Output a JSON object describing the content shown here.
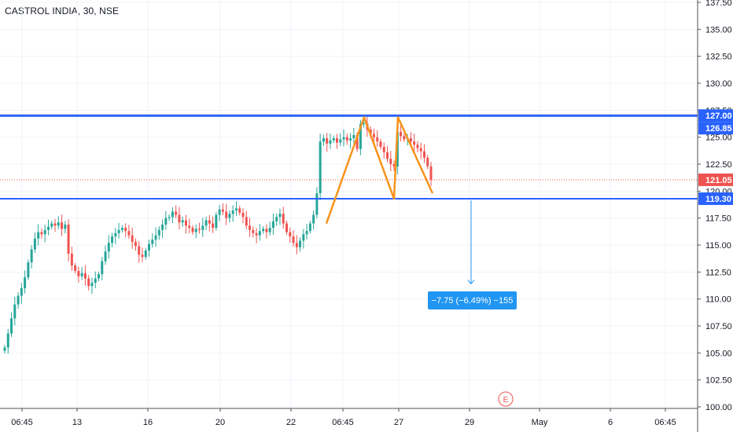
{
  "header": {
    "symbol_title": "CASTROL INDIA, 30, NSE"
  },
  "colors": {
    "up": "#26a69a",
    "down": "#ef5350",
    "level_line": "#2962ff",
    "level_label_bg": "#2962ff",
    "pattern": "#f7931a",
    "last_price": "#ef5350",
    "projection": "#2196f3",
    "grid": "#f0f3fa",
    "axis_text": "#131722"
  },
  "chart_data": {
    "type": "candlestick",
    "title": "CASTROL INDIA, 30, NSE",
    "ylim": [
      100,
      137.5
    ],
    "y_ticks": [
      "100.00",
      "102.50",
      "105.00",
      "107.50",
      "110.00",
      "112.50",
      "115.00",
      "117.50",
      "120.00",
      "122.50",
      "125.00",
      "127.50",
      "130.00",
      "132.50",
      "135.00",
      "137.50"
    ],
    "x_ticks": [
      "06:45",
      "13",
      "16",
      "20",
      "22",
      "06:45",
      "27",
      "29",
      "May",
      "6",
      "06:45"
    ],
    "levels": [
      {
        "label": "127.00",
        "value": 127.0
      },
      {
        "label": "119.30",
        "value": 119.3
      }
    ],
    "last_price": {
      "label": "121.05",
      "value": 121.05
    },
    "high_marker": {
      "label": "126.85",
      "value": 126.85
    },
    "double_top_pattern": [
      117.0,
      126.85,
      119.3,
      126.85,
      119.8
    ],
    "projection": {
      "from": 119.3,
      "to": 111.55,
      "label": "−7.75 (−6.49%) −155"
    },
    "event_marker": "E",
    "price_path": [
      105.5,
      106.8,
      108.2,
      109.5,
      110.3,
      111.0,
      112.0,
      113.4,
      114.6,
      115.6,
      116.2,
      116.0,
      116.4,
      116.7,
      117.0,
      116.8,
      117.1,
      116.5,
      116.9,
      114.2,
      113.1,
      112.6,
      112.1,
      112.4,
      111.9,
      111.2,
      111.5,
      111.9,
      112.3,
      113.5,
      114.4,
      115.2,
      115.8,
      116.1,
      116.4,
      116.6,
      116.3,
      115.9,
      115.3,
      114.9,
      114.1,
      113.9,
      114.5,
      115.1,
      115.5,
      115.9,
      116.4,
      116.9,
      117.5,
      117.6,
      118.1,
      117.8,
      117.1,
      117.3,
      116.8,
      116.6,
      116.2,
      116.5,
      116.4,
      116.8,
      117.3,
      117.0,
      116.6,
      117.8,
      118.3,
      118.1,
      117.5,
      117.9,
      118.2,
      118.4,
      118.0,
      117.6,
      116.8,
      116.4,
      116.1,
      115.9,
      116.3,
      116.5,
      116.2,
      116.6,
      117.2,
      117.6,
      117.9,
      117.0,
      116.2,
      115.8,
      115.2,
      114.8,
      115.4,
      116.0,
      116.3,
      117.0,
      117.8,
      119.8,
      124.6,
      124.9,
      124.4,
      124.7,
      124.9,
      124.5,
      124.8,
      125.0,
      124.7,
      124.9,
      125.2,
      123.9,
      126.2,
      126.3,
      125.7,
      125.3,
      125.0,
      124.6,
      124.1,
      123.6,
      123.0,
      122.5,
      122.3,
      125.5,
      125.1,
      124.8,
      124.9,
      124.6,
      124.3,
      124.0,
      123.7,
      123.1,
      122.3,
      121.05
    ]
  },
  "annotations": {
    "level_127": "127.00",
    "level_high": "126.85",
    "level_last": "121.05",
    "level_119": "119.30",
    "projection_label": "−7.75 (−6.49%) −155",
    "event_marker": "E"
  }
}
